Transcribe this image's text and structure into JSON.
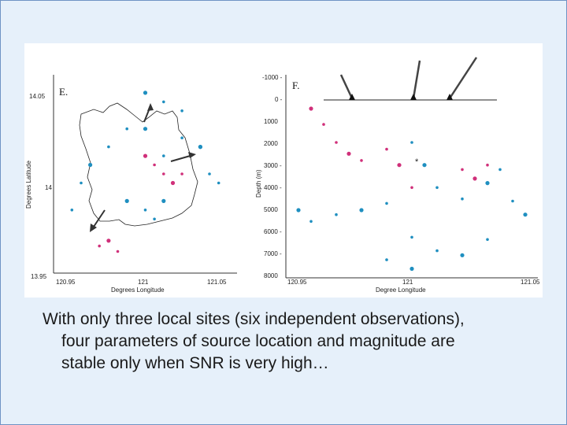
{
  "caption": {
    "line1": "With only three local sites (six independent observations),",
    "line2": "four parameters of source location and magnitude are",
    "line3": "stable only when SNR is very high…"
  },
  "colors": {
    "background": "#e6f0fa",
    "blue_points": "#1f8fc0",
    "pink_points": "#d0307a",
    "outline": "#222222"
  },
  "panel_e": {
    "letter": "E.",
    "ylabel": "Degrees Latitude",
    "xlabel": "Degrees Longitude",
    "y_ticks": [
      "14.05",
      "14",
      "13.95"
    ],
    "x_ticks": [
      "120.95",
      "121",
      "121.05"
    ]
  },
  "panel_f": {
    "letter": "F.",
    "ylabel": "Depth (m)",
    "xlabel": "Degree Longitude",
    "y_ticks": [
      "-1000 -",
      "0 -",
      "1000",
      "2000",
      "3000 -",
      "4000 -",
      "5000",
      "6000 -",
      "7000 -",
      "8000"
    ],
    "x_ticks": [
      "120.95",
      "121",
      "121.05"
    ],
    "star": "*"
  },
  "chart_data": [
    {
      "type": "scatter",
      "panel": "E.",
      "xlabel": "Degrees Longitude",
      "ylabel": "Degrees Latitude",
      "xlim": [
        120.95,
        121.05
      ],
      "ylim": [
        13.95,
        14.06
      ],
      "x_ticks": [
        120.95,
        121,
        121.05
      ],
      "y_ticks": [
        13.95,
        14,
        14.05
      ],
      "series": [
        {
          "color": "#1f8fc0",
          "x": [
            121.0,
            121.01,
            121.02,
            121.03,
            120.99,
            120.98,
            120.97,
            120.965,
            120.96,
            121.0,
            121.01,
            121.02,
            121.03,
            121.035,
            121.04,
            120.99,
            121.0,
            121.005,
            121.01,
            121.015
          ],
          "y": [
            14.05,
            14.045,
            14.04,
            14.02,
            14.03,
            14.02,
            14.01,
            14.0,
            13.985,
            14.03,
            14.015,
            14.025,
            14.02,
            14.005,
            14.0,
            13.99,
            13.985,
            13.98,
            13.99,
            14.0
          ]
        },
        {
          "color": "#d0307a",
          "x": [
            121.0,
            121.005,
            121.01,
            121.015,
            121.02,
            120.975,
            120.98,
            120.985
          ],
          "y": [
            14.015,
            14.01,
            14.005,
            14.0,
            14.005,
            13.965,
            13.968,
            13.962
          ]
        }
      ]
    },
    {
      "type": "scatter",
      "panel": "F.",
      "xlabel": "Degree Longitude",
      "ylabel": "Depth (m)",
      "xlim": [
        120.95,
        121.05
      ],
      "ylim": [
        8000,
        -1000
      ],
      "x_ticks": [
        120.95,
        121,
        121.05
      ],
      "y_ticks": [
        -1000,
        0,
        1000,
        2000,
        3000,
        4000,
        5000,
        6000,
        7000,
        8000
      ],
      "series": [
        {
          "color": "#1f8fc0",
          "x": [
            120.955,
            120.96,
            120.97,
            120.98,
            120.99,
            121.0,
            121.005,
            121.01,
            121.02,
            121.03,
            121.035,
            121.04,
            121.045,
            121.0,
            121.01,
            121.02,
            121.03,
            120.99,
            121.0
          ],
          "y": [
            5000,
            5500,
            5200,
            5000,
            4700,
            2000,
            3000,
            4000,
            4500,
            3800,
            3200,
            4600,
            5200,
            6200,
            6800,
            7000,
            6300,
            7200,
            7600
          ]
        },
        {
          "color": "#d0307a",
          "x": [
            120.96,
            120.965,
            120.97,
            120.975,
            120.98,
            120.99,
            120.995,
            121.0,
            121.02,
            121.025,
            121.03
          ],
          "y": [
            500,
            1200,
            2000,
            2500,
            2800,
            2300,
            3000,
            4000,
            3200,
            3600,
            3000
          ]
        }
      ]
    }
  ]
}
